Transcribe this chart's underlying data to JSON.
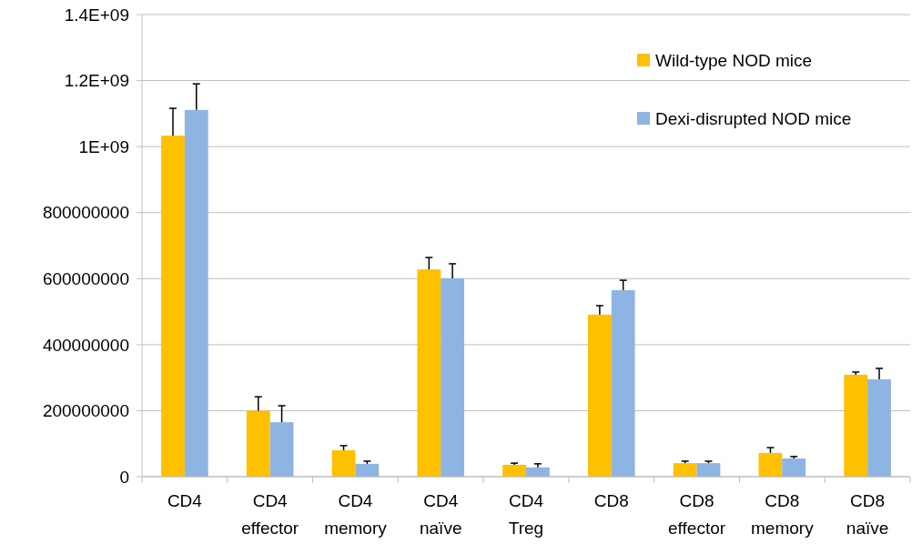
{
  "chart_data": {
    "type": "bar",
    "categories": [
      "CD4",
      "CD4 effector",
      "CD4 memory",
      "CD4 naïve",
      "CD4 Treg",
      "CD8",
      "CD8 effector",
      "CD8 memory",
      "CD8 naïve"
    ],
    "series": [
      {
        "name": "Wild-type NOD mice",
        "color": "#ffc000",
        "values": [
          1033000000,
          200000000,
          80000000,
          628000000,
          36000000,
          491000000,
          41000000,
          72000000,
          309000000
        ],
        "errors": [
          [
            1033000000,
            1116000000
          ],
          [
            200000000,
            242000000
          ],
          [
            80000000,
            94000000
          ],
          [
            628000000,
            664000000
          ],
          [
            36000000,
            41000000
          ],
          [
            491000000,
            518000000
          ],
          [
            41000000,
            47000000
          ],
          [
            72000000,
            88000000
          ],
          [
            309000000,
            317000000
          ]
        ]
      },
      {
        "name": "Dexi-disrupted NOD mice",
        "color": "#8eb4e3",
        "values": [
          1111000000,
          165000000,
          39000000,
          601000000,
          28000000,
          565000000,
          41000000,
          55000000,
          295000000
        ],
        "errors": [
          [
            1111000000,
            1190000000
          ],
          [
            165000000,
            215000000
          ],
          [
            39000000,
            47000000
          ],
          [
            601000000,
            645000000
          ],
          [
            28000000,
            39000000
          ],
          [
            565000000,
            595000000
          ],
          [
            41000000,
            47000000
          ],
          [
            55000000,
            61000000
          ],
          [
            295000000,
            328000000
          ]
        ]
      }
    ],
    "ylim": [
      0,
      1400000000
    ],
    "yticks": [
      0,
      200000000,
      400000000,
      600000000,
      800000000,
      {
        "value": 1000000000,
        "label": "1E+09"
      },
      {
        "value": 1200000000,
        "label": "1.2E+09"
      },
      {
        "value": 1400000000,
        "label": "1.4E+09"
      }
    ],
    "grid": "y",
    "legend": "top right"
  }
}
